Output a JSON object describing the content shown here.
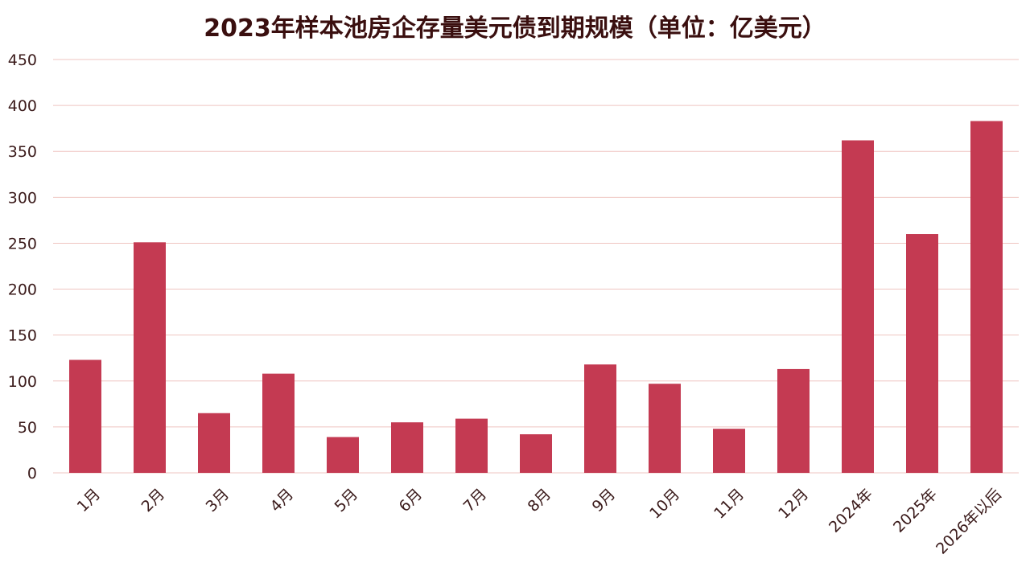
{
  "chart_data": {
    "type": "bar",
    "title": "2023年样本池房企存量美元债到期规模（单位：亿美元）",
    "xlabel": "",
    "ylabel": "",
    "categories": [
      "1月",
      "2月",
      "3月",
      "4月",
      "5月",
      "6月",
      "7月",
      "8月",
      "9月",
      "10月",
      "11月",
      "12月",
      "2024年",
      "2025年",
      "2026年以后"
    ],
    "values": [
      123,
      251,
      65,
      108,
      39,
      55,
      59,
      42,
      118,
      97,
      48,
      113,
      362,
      260,
      383
    ],
    "ylim": [
      0,
      450
    ],
    "yticks": [
      0,
      50,
      100,
      150,
      200,
      250,
      300,
      350,
      400,
      450
    ],
    "grid": true,
    "legend": "none",
    "colors": {
      "bar": "#c43a52",
      "grid": "#efc4c0",
      "title": "#3a0f0f",
      "tick": "#3a1a1a"
    }
  }
}
